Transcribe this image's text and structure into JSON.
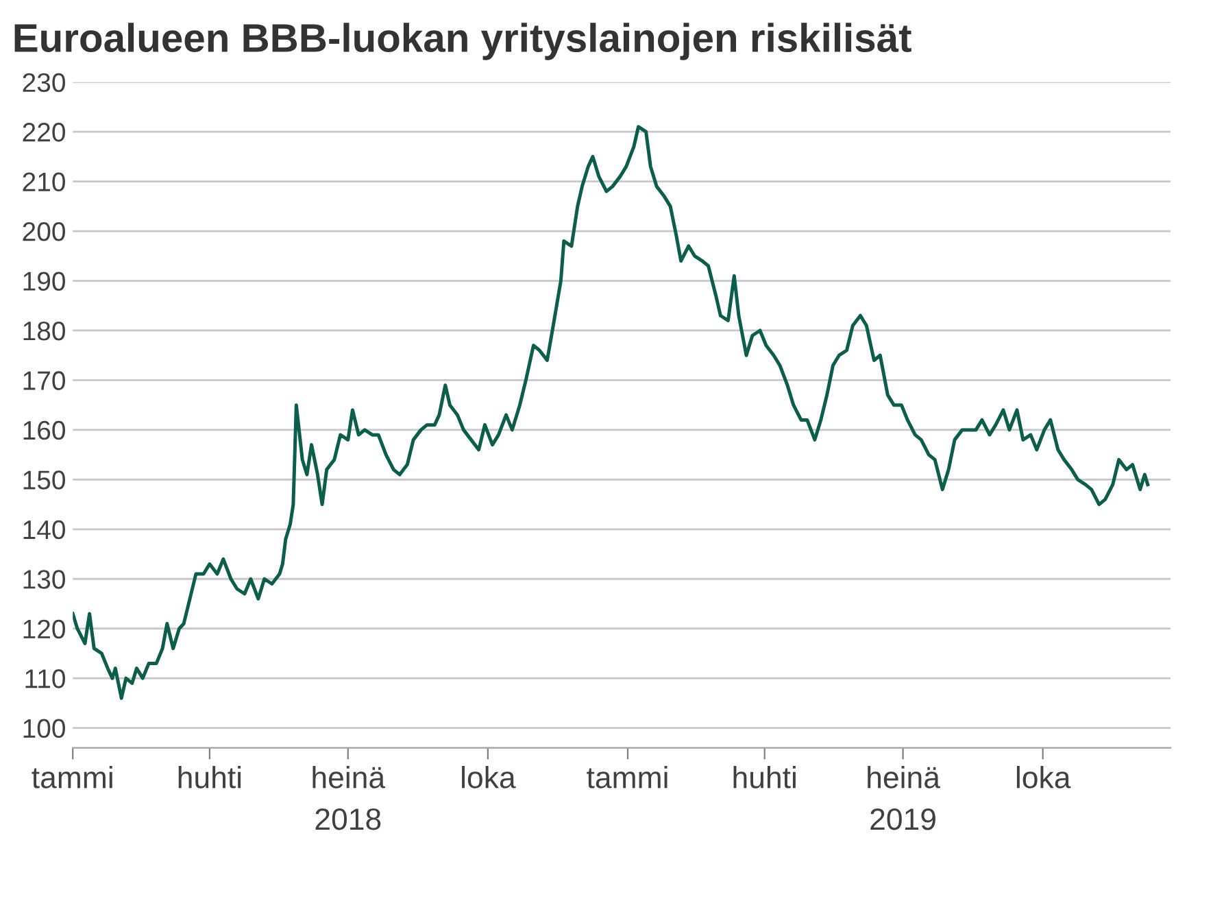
{
  "chart_data": {
    "type": "line",
    "title": "Euroalueen BBB-luokan yrityslainojen riskilisät",
    "x": [
      "2018-01-01",
      "2018-01-04",
      "2018-01-09",
      "2018-01-12",
      "2018-01-15",
      "2018-01-20",
      "2018-01-24",
      "2018-01-27",
      "2018-01-29",
      "2018-02-02",
      "2018-02-05",
      "2018-02-09",
      "2018-02-12",
      "2018-02-16",
      "2018-02-20",
      "2018-02-25",
      "2018-03-01",
      "2018-03-04",
      "2018-03-08",
      "2018-03-12",
      "2018-03-15",
      "2018-03-19",
      "2018-03-23",
      "2018-03-28",
      "2018-04-01",
      "2018-04-06",
      "2018-04-10",
      "2018-04-15",
      "2018-04-19",
      "2018-04-24",
      "2018-04-28",
      "2018-05-03",
      "2018-05-07",
      "2018-05-12",
      "2018-05-17",
      "2018-05-19",
      "2018-05-21",
      "2018-05-24",
      "2018-05-26",
      "2018-05-28",
      "2018-06-01",
      "2018-06-04",
      "2018-06-07",
      "2018-06-11",
      "2018-06-14",
      "2018-06-17",
      "2018-06-22",
      "2018-06-26",
      "2018-07-01",
      "2018-07-04",
      "2018-07-08",
      "2018-07-12",
      "2018-07-17",
      "2018-07-21",
      "2018-07-26",
      "2018-07-31",
      "2018-08-04",
      "2018-08-09",
      "2018-08-13",
      "2018-08-18",
      "2018-08-22",
      "2018-08-27",
      "2018-08-30",
      "2018-09-03",
      "2018-09-06",
      "2018-09-11",
      "2018-09-15",
      "2018-09-20",
      "2018-09-25",
      "2018-09-29",
      "2018-10-04",
      "2018-10-08",
      "2018-10-13",
      "2018-10-17",
      "2018-10-22",
      "2018-10-26",
      "2018-10-31",
      "2018-11-04",
      "2018-11-09",
      "2018-11-13",
      "2018-11-18",
      "2018-11-20",
      "2018-11-25",
      "2018-11-29",
      "2018-12-02",
      "2018-12-06",
      "2018-12-09",
      "2018-12-13",
      "2018-12-18",
      "2018-12-22",
      "2018-12-27",
      "2018-12-31",
      "2019-01-05",
      "2019-01-08",
      "2019-01-13",
      "2019-01-16",
      "2019-01-20",
      "2019-01-25",
      "2019-01-29",
      "2019-02-02",
      "2019-02-05",
      "2019-02-10",
      "2019-02-14",
      "2019-02-19",
      "2019-02-23",
      "2019-02-28",
      "2019-03-03",
      "2019-03-08",
      "2019-03-12",
      "2019-03-15",
      "2019-03-20",
      "2019-03-24",
      "2019-03-29",
      "2019-04-02",
      "2019-04-07",
      "2019-04-11",
      "2019-04-16",
      "2019-04-20",
      "2019-04-25",
      "2019-04-29",
      "2019-05-04",
      "2019-05-08",
      "2019-05-12",
      "2019-05-16",
      "2019-05-20",
      "2019-05-25",
      "2019-05-29",
      "2019-06-03",
      "2019-06-07",
      "2019-06-12",
      "2019-06-16",
      "2019-06-21",
      "2019-06-25",
      "2019-06-30",
      "2019-07-04",
      "2019-07-09",
      "2019-07-13",
      "2019-07-18",
      "2019-07-22",
      "2019-07-27",
      "2019-07-31",
      "2019-08-04",
      "2019-08-09",
      "2019-08-13",
      "2019-08-18",
      "2019-08-22",
      "2019-08-27",
      "2019-08-31",
      "2019-09-05",
      "2019-09-09",
      "2019-09-14",
      "2019-09-18",
      "2019-09-23",
      "2019-09-27",
      "2019-10-02",
      "2019-10-06",
      "2019-10-11",
      "2019-10-15",
      "2019-10-20",
      "2019-10-24",
      "2019-10-29",
      "2019-11-02",
      "2019-11-07",
      "2019-11-11",
      "2019-11-16",
      "2019-11-20",
      "2019-11-25",
      "2019-11-29",
      "2019-12-04",
      "2019-12-07",
      "2019-12-09"
    ],
    "series": [
      {
        "color": "#0b5e4c",
        "values": [
          123,
          120,
          117,
          123,
          116,
          115,
          112,
          110,
          112,
          106,
          110,
          109,
          112,
          110,
          113,
          113,
          116,
          121,
          116,
          120,
          121,
          126,
          131,
          131,
          133,
          131,
          134,
          130,
          128,
          127,
          130,
          126,
          130,
          129,
          131,
          133,
          138,
          141,
          145,
          165,
          154,
          151,
          157,
          151,
          145,
          152,
          154,
          159,
          158,
          164,
          159,
          160,
          159,
          159,
          155,
          152,
          151,
          153,
          158,
          160,
          161,
          161,
          163,
          169,
          165,
          163,
          160,
          158,
          156,
          161,
          157,
          159,
          163,
          160,
          165,
          170,
          177,
          176,
          174,
          181,
          190,
          198,
          197,
          205,
          209,
          213,
          215,
          211,
          208,
          209,
          211,
          213,
          217,
          221,
          220,
          213,
          209,
          207,
          205,
          199,
          194,
          197,
          195,
          194,
          193,
          187,
          183,
          182,
          191,
          183,
          175,
          179,
          180,
          177,
          175,
          173,
          169,
          165,
          162,
          162,
          158,
          162,
          167,
          173,
          175,
          176,
          181,
          183,
          181,
          174,
          175,
          167,
          165,
          165,
          162,
          159,
          158,
          155,
          154,
          148,
          152,
          158,
          160,
          160,
          160,
          162,
          159,
          161,
          164,
          160,
          164,
          158,
          159,
          156,
          160,
          162,
          156,
          154,
          152,
          150,
          149,
          148,
          145,
          146,
          149,
          154,
          152,
          153,
          148,
          151,
          149
        ]
      }
    ],
    "xlim": [
      "2018-01-01",
      "2019-12-24"
    ],
    "xticks": [
      {
        "value": "2018-01-01",
        "label": "tammi"
      },
      {
        "value": "2018-04-01",
        "label": "huhti"
      },
      {
        "value": "2018-07-01",
        "label": "heinä\n2018"
      },
      {
        "value": "2018-10-01",
        "label": "loka"
      },
      {
        "value": "2019-01-01",
        "label": "tammi"
      },
      {
        "value": "2019-04-01",
        "label": "huhti"
      },
      {
        "value": "2019-07-01",
        "label": "heinä\n2019"
      },
      {
        "value": "2019-10-01",
        "label": "loka"
      }
    ],
    "ylim": [
      96,
      230
    ],
    "yticks": [
      100,
      110,
      120,
      130,
      140,
      150,
      160,
      170,
      180,
      190,
      200,
      210,
      220,
      230
    ],
    "grid": "y",
    "legend": false,
    "marker": "none",
    "line_style": "solid"
  }
}
